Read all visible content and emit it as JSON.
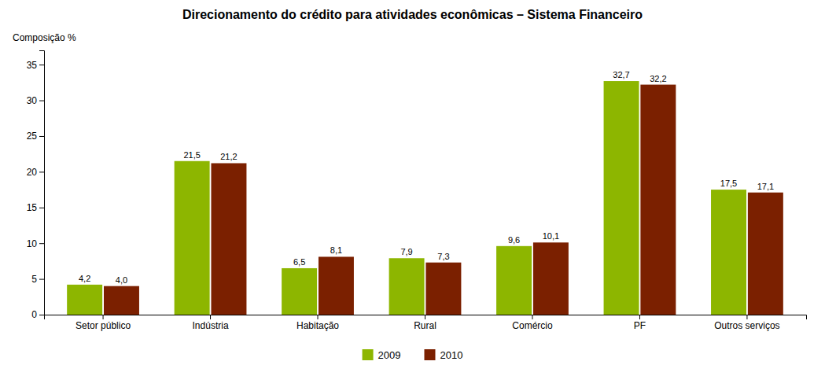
{
  "chart_data": {
    "type": "bar",
    "title": "Direcionamento do crédito para atividades econômicas – Sistema Financeiro",
    "ylabel": "Composição %",
    "categories": [
      "Setor público",
      "Indústria",
      "Habitação",
      "Rural",
      "Comércio",
      "PF",
      "Outros serviços"
    ],
    "series": [
      {
        "name": "2009",
        "color": "#8DB600",
        "values": [
          4.2,
          21.5,
          6.5,
          7.9,
          9.6,
          32.7,
          17.5
        ],
        "value_labels": [
          "4,2",
          "21,5",
          "6,5",
          "7,9",
          "9,6",
          "32,7",
          "17,5"
        ]
      },
      {
        "name": "2010",
        "color": "#7B2000",
        "values": [
          4.0,
          21.2,
          8.1,
          7.3,
          10.1,
          32.2,
          17.1
        ],
        "value_labels": [
          "4,0",
          "21,2",
          "8,1",
          "7,3",
          "10,1",
          "32,2",
          "17,1"
        ]
      }
    ],
    "ylim": [
      0,
      37
    ],
    "yticks": [
      0,
      5,
      10,
      15,
      20,
      25,
      30,
      35
    ],
    "data_labels": true,
    "grid": false,
    "legend": "bottom"
  }
}
